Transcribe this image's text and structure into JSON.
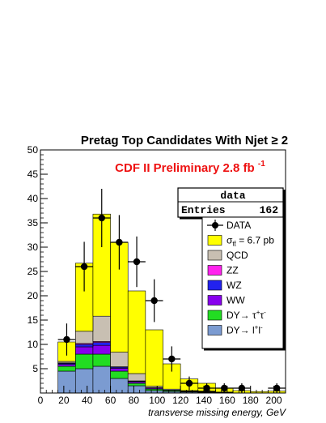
{
  "chart_data": {
    "type": "bar",
    "stacked": true,
    "title_main": "Pretag Top Candidates With Njet",
    "title_suffix": "≥ 2",
    "annotation_main": "CDF II Preliminary 2.8 fb",
    "annotation_sup": "-1",
    "xlabel": "transverse missing energy, GeV",
    "ylabel": "",
    "xlim": [
      0,
      210
    ],
    "ylim": [
      0,
      50
    ],
    "x_ticks": [
      "0",
      "20",
      "40",
      "60",
      "80",
      "100",
      "120",
      "140",
      "160",
      "180",
      "200"
    ],
    "y_ticks": [
      "5",
      "10",
      "15",
      "20",
      "25",
      "30",
      "35",
      "40",
      "45",
      "50"
    ],
    "bin_edges": [
      15,
      30,
      45,
      60,
      75,
      90,
      105,
      120,
      135,
      150,
      165,
      180,
      195,
      210
    ],
    "stats_box": {
      "name": "data",
      "entries_label": "Entries",
      "entries_value": "162"
    },
    "series": [
      {
        "name": "DY→ l+l-",
        "label_main": "DY→ l",
        "label_sup1": "+",
        "label_mid": "l",
        "label_sup2": "-",
        "color": "#7b9bd1",
        "values": [
          4.5,
          5,
          5.5,
          3,
          1.5,
          0.5,
          0.3,
          0.2,
          0.1,
          0.1,
          0,
          0,
          0
        ]
      },
      {
        "name": "DY→ τ+τ-",
        "label_main": "DY→ τ",
        "label_sup1": "+",
        "label_mid": "τ",
        "label_sup2": "-",
        "color": "#22dd22",
        "values": [
          1,
          3,
          2.5,
          1.5,
          0.5,
          0.3,
          0.2,
          0.1,
          0.1,
          0,
          0,
          0,
          0
        ]
      },
      {
        "name": "WW",
        "label_main": "WW",
        "color": "#8800ee",
        "values": [
          0.4,
          1.5,
          1.8,
          0.6,
          0.3,
          0.2,
          0.1,
          0.1,
          0.1,
          0,
          0,
          0,
          0
        ]
      },
      {
        "name": "WZ",
        "label_main": "WZ",
        "color": "#2222ee",
        "values": [
          0.2,
          0.5,
          0.6,
          0.2,
          0.1,
          0.1,
          0,
          0,
          0,
          0,
          0,
          0,
          0
        ]
      },
      {
        "name": "ZZ",
        "label_main": "ZZ",
        "color": "#ff22ee",
        "values": [
          0.1,
          0.2,
          0.2,
          0.1,
          0.1,
          0,
          0,
          0,
          0,
          0,
          0,
          0,
          0
        ]
      },
      {
        "name": "QCD",
        "label_main": "QCD",
        "color": "#c8bfb2",
        "values": [
          0.3,
          2.5,
          5.2,
          3,
          1.5,
          0.3,
          0.2,
          0.1,
          0.1,
          0.1,
          0,
          0,
          0
        ]
      },
      {
        "name": "σ_tt̄ = 6.7 pb",
        "label_main": "σ",
        "label_sub": "tt̄",
        "label_rest": " = 6.7 pb",
        "color": "#ffff00",
        "values": [
          4,
          14,
          21,
          22.6,
          17,
          11.6,
          5.2,
          2.4,
          1.6,
          0.8,
          0.5,
          0.3,
          0.4
        ]
      }
    ],
    "data_points": {
      "name": "DATA",
      "x": [
        22.5,
        37.5,
        52.5,
        67.5,
        82.5,
        97.5,
        112.5,
        127.5,
        142.5,
        157.5,
        172.5,
        187.5,
        202.5
      ],
      "y": [
        11,
        26,
        36,
        31,
        27,
        19,
        7,
        2,
        1,
        1,
        1,
        0,
        1
      ],
      "err": [
        3.3,
        5.1,
        6.0,
        5.6,
        5.2,
        4.4,
        2.6,
        1.4,
        1.0,
        1.0,
        1.0,
        0,
        1.0
      ]
    }
  }
}
